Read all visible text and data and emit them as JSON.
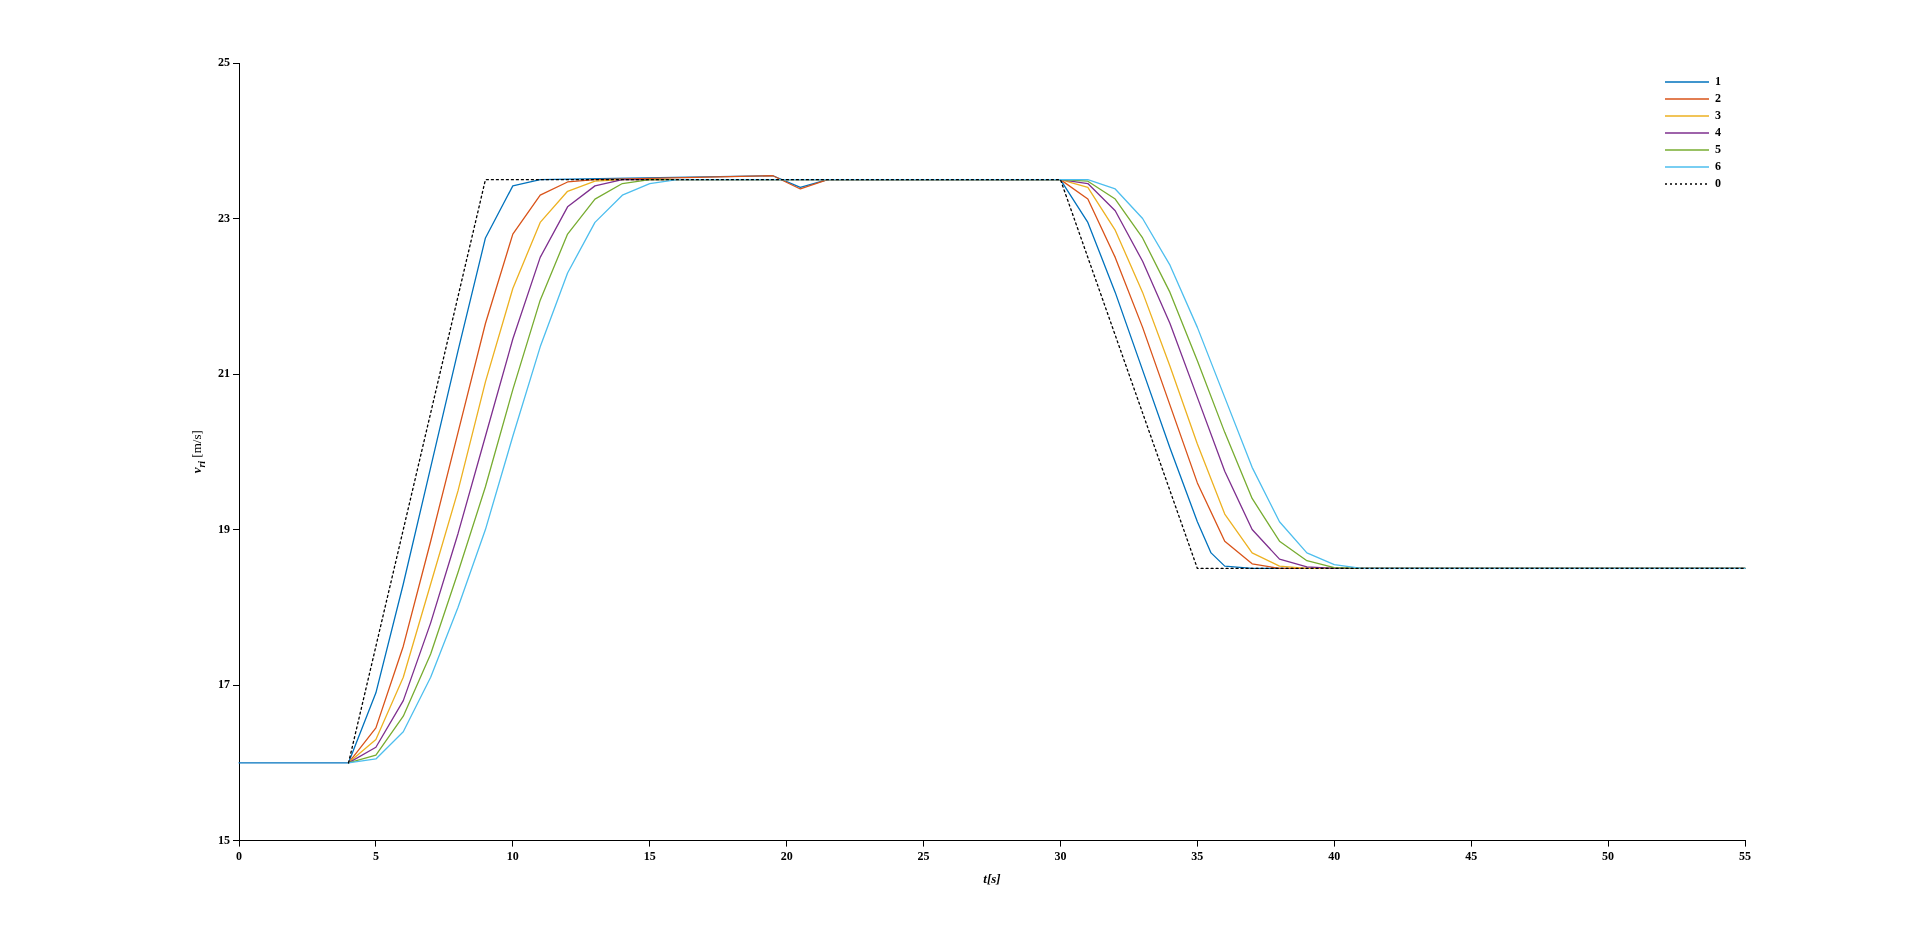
{
  "chart_data": {
    "type": "line",
    "xlabel": "t[s]",
    "ylabel": "v$_{ri}$ [m/s]",
    "xlim": [
      0,
      55
    ],
    "xticks": [
      0,
      5,
      10,
      15,
      20,
      25,
      30,
      35,
      40,
      45,
      50,
      55
    ],
    "ylim": [
      15,
      25
    ],
    "yticks": [
      15,
      17,
      19,
      21,
      23,
      25
    ],
    "legend": "top right",
    "marker": "none",
    "series": [
      {
        "name": "1",
        "color": "#0072bd",
        "line_style": "solid",
        "x": [
          0,
          4,
          5,
          6,
          7,
          8,
          9,
          10,
          11,
          19.5,
          20.5,
          21.5,
          30,
          31,
          32,
          33,
          34,
          35,
          35.5,
          36,
          37,
          55
        ],
        "values": [
          16,
          16,
          16.9,
          18.3,
          19.8,
          21.3,
          22.75,
          23.42,
          23.5,
          23.55,
          23.4,
          23.5,
          23.5,
          22.95,
          22.05,
          21.05,
          20.05,
          19.1,
          18.7,
          18.53,
          18.5,
          18.5
        ]
      },
      {
        "name": "2",
        "color": "#d95319",
        "line_style": "solid",
        "x": [
          4,
          5,
          6,
          7,
          8,
          9,
          10,
          11,
          12,
          13,
          19.5,
          20.5,
          21.5,
          30,
          31,
          32,
          33,
          34,
          35,
          36,
          37,
          38,
          55
        ],
        "values": [
          16,
          16.45,
          17.5,
          18.85,
          20.25,
          21.65,
          22.8,
          23.3,
          23.47,
          23.5,
          23.55,
          23.38,
          23.5,
          23.5,
          23.25,
          22.5,
          21.6,
          20.6,
          19.6,
          18.85,
          18.56,
          18.5,
          18.5
        ]
      },
      {
        "name": "3",
        "color": "#edb120",
        "line_style": "solid",
        "x": [
          4,
          5,
          6,
          7,
          8,
          9,
          10,
          11,
          12,
          13,
          14,
          30,
          31,
          32,
          33,
          34,
          35,
          36,
          37,
          38,
          39,
          55
        ],
        "values": [
          16,
          16.3,
          17.1,
          18.3,
          19.5,
          20.9,
          22.1,
          22.95,
          23.35,
          23.48,
          23.5,
          23.5,
          23.4,
          22.85,
          22.05,
          21.1,
          20.1,
          19.2,
          18.7,
          18.53,
          18.5,
          18.5
        ]
      },
      {
        "name": "4",
        "color": "#7e2f8e",
        "line_style": "solid",
        "x": [
          4,
          5,
          6,
          7,
          8,
          9,
          10,
          11,
          12,
          13,
          14,
          30,
          31,
          32,
          33,
          34,
          35,
          36,
          37,
          38,
          39,
          40,
          55
        ],
        "values": [
          16,
          16.2,
          16.8,
          17.8,
          18.95,
          20.2,
          21.45,
          22.5,
          23.15,
          23.42,
          23.5,
          23.5,
          23.45,
          23.1,
          22.45,
          21.65,
          20.7,
          19.75,
          19.0,
          18.62,
          18.52,
          18.5,
          18.5
        ]
      },
      {
        "name": "5",
        "color": "#77ac30",
        "line_style": "solid",
        "x": [
          4,
          5,
          6,
          7,
          8,
          9,
          10,
          11,
          12,
          13,
          14,
          15,
          30,
          31,
          32,
          33,
          34,
          35,
          36,
          37,
          38,
          39,
          40,
          41,
          55
        ],
        "values": [
          16,
          16.1,
          16.6,
          17.4,
          18.45,
          19.55,
          20.8,
          21.95,
          22.8,
          23.25,
          23.45,
          23.5,
          23.5,
          23.48,
          23.25,
          22.75,
          22.05,
          21.17,
          20.25,
          19.4,
          18.85,
          18.6,
          18.51,
          18.5,
          18.5
        ]
      },
      {
        "name": "6",
        "color": "#4dbeee",
        "line_style": "solid",
        "x": [
          4,
          5,
          6,
          7,
          8,
          9,
          10,
          11,
          12,
          13,
          14,
          15,
          16,
          30,
          31,
          32,
          33,
          34,
          35,
          36,
          37,
          38,
          39,
          40,
          41,
          55
        ],
        "values": [
          16,
          16.05,
          16.4,
          17.1,
          18.0,
          19.0,
          20.2,
          21.35,
          22.3,
          22.95,
          23.3,
          23.45,
          23.5,
          23.5,
          23.5,
          23.38,
          23.0,
          22.4,
          21.6,
          20.7,
          19.8,
          19.1,
          18.7,
          18.55,
          18.5,
          18.5
        ]
      },
      {
        "name": "0",
        "color": "#000000",
        "line_style": "dotted",
        "x": [
          4,
          9,
          30,
          35,
          55
        ],
        "values": [
          16,
          23.5,
          23.5,
          18.5,
          18.5
        ]
      }
    ]
  }
}
